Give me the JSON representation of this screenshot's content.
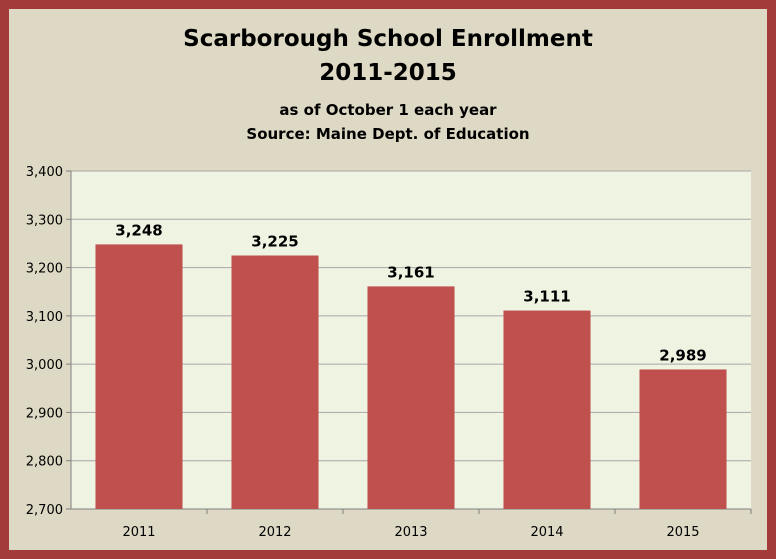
{
  "chart_data": {
    "type": "bar",
    "title": "Scarborough School Enrollment",
    "title_line2": "2011-2015",
    "subtitle": "as of October 1 each year",
    "source": "Source: Maine Dept. of Education",
    "categories": [
      "2011",
      "2012",
      "2013",
      "2014",
      "2015"
    ],
    "values": [
      3248,
      3225,
      3161,
      3111,
      2989
    ],
    "data_labels": [
      "3,248",
      "3,225",
      "3,161",
      "3,111",
      "2,989"
    ],
    "ylim": [
      2700,
      3400
    ],
    "yticks": [
      2700,
      2800,
      2900,
      3000,
      3100,
      3200,
      3300,
      3400
    ],
    "ytick_labels": [
      "2,700",
      "2,800",
      "2,900",
      "3,000",
      "3,100",
      "3,200",
      "3,300",
      "3,400"
    ],
    "grid": true,
    "legend": "none",
    "colors": {
      "bar": "#c0504d",
      "plot_bg": "#eef3e2",
      "frame": "#a33b3b",
      "chart_bg": "#ddd9c4",
      "grid": "#a6a6a6"
    }
  }
}
